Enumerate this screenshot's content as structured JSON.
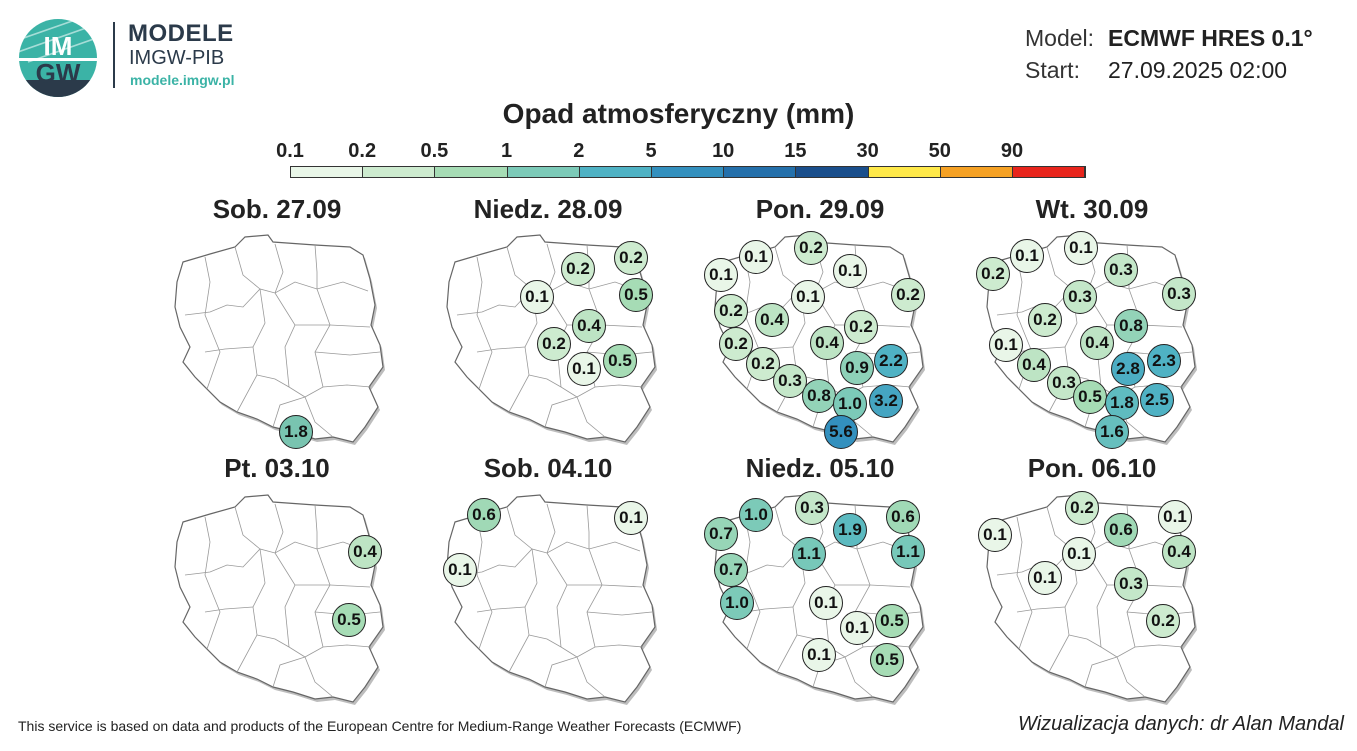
{
  "brand": {
    "title": "MODELE",
    "subtitle": "IMGW-PIB",
    "url": "modele.imgw.pl",
    "logo_text_top": "IM",
    "logo_text_bottom": "GW"
  },
  "meta": {
    "model_label": "Model:",
    "model_value": "ECMWF HRES 0.1°",
    "start_label": "Start:",
    "start_value": "27.09.2025 02:00"
  },
  "legend": {
    "title": "Opad atmosferyczny (mm)",
    "ticks": [
      "0.1",
      "0.2",
      "0.5",
      "1",
      "2",
      "5",
      "10",
      "15",
      "30",
      "50",
      "90"
    ],
    "colors": [
      "#e9f6e8",
      "#cdebcf",
      "#a6dcb5",
      "#7ccab8",
      "#4fb2c4",
      "#3390be",
      "#2470ab",
      "#1a4f8c",
      "#ffe94a",
      "#f5a124",
      "#e8251c"
    ]
  },
  "days": [
    {
      "title": "Sob. 27.09",
      "values": [
        {
          "v": "1.8",
          "c": "#79c4b0"
        }
      ]
    },
    {
      "title": "Niedz. 28.09",
      "values": [
        {
          "v": "0.2",
          "c": "#cdebcf"
        },
        {
          "v": "0.2",
          "c": "#cdebcf"
        },
        {
          "v": "0.1",
          "c": "#e9f6e8"
        },
        {
          "v": "0.5",
          "c": "#a6dcb5"
        },
        {
          "v": "0.4",
          "c": "#bde4c4"
        },
        {
          "v": "0.2",
          "c": "#cdebcf"
        },
        {
          "v": "0.1",
          "c": "#e9f6e8"
        },
        {
          "v": "0.5",
          "c": "#a6dcb5"
        }
      ]
    },
    {
      "title": "Pon. 29.09",
      "values": [
        {
          "v": "0.2",
          "c": "#cdebcf"
        },
        {
          "v": "0.1",
          "c": "#e9f6e8"
        },
        {
          "v": "0.1",
          "c": "#e9f6e8"
        },
        {
          "v": "0.1",
          "c": "#e9f6e8"
        },
        {
          "v": "0.1",
          "c": "#e9f6e8"
        },
        {
          "v": "0.2",
          "c": "#cdebcf"
        },
        {
          "v": "0.2",
          "c": "#cdebcf"
        },
        {
          "v": "0.4",
          "c": "#bde4c4"
        },
        {
          "v": "0.2",
          "c": "#cdebcf"
        },
        {
          "v": "0.4",
          "c": "#bde4c4"
        },
        {
          "v": "0.2",
          "c": "#cdebcf"
        },
        {
          "v": "0.9",
          "c": "#8ed1b8"
        },
        {
          "v": "2.2",
          "c": "#4fb2c4"
        },
        {
          "v": "0.2",
          "c": "#cdebcf"
        },
        {
          "v": "0.3",
          "c": "#c4e7c9"
        },
        {
          "v": "0.8",
          "c": "#93d3b8"
        },
        {
          "v": "1.0",
          "c": "#7ccab8"
        },
        {
          "v": "3.2",
          "c": "#45a5c2"
        },
        {
          "v": "5.6",
          "c": "#3390be"
        }
      ]
    },
    {
      "title": "Wt. 30.09",
      "values": [
        {
          "v": "0.1",
          "c": "#e9f6e8"
        },
        {
          "v": "0.1",
          "c": "#e9f6e8"
        },
        {
          "v": "0.2",
          "c": "#cdebcf"
        },
        {
          "v": "0.3",
          "c": "#c4e7c9"
        },
        {
          "v": "0.3",
          "c": "#c4e7c9"
        },
        {
          "v": "0.3",
          "c": "#c4e7c9"
        },
        {
          "v": "0.2",
          "c": "#cdebcf"
        },
        {
          "v": "0.8",
          "c": "#93d3b8"
        },
        {
          "v": "0.1",
          "c": "#e9f6e8"
        },
        {
          "v": "0.4",
          "c": "#bde4c4"
        },
        {
          "v": "0.4",
          "c": "#bde4c4"
        },
        {
          "v": "2.3",
          "c": "#4fb2c4"
        },
        {
          "v": "2.8",
          "c": "#4cadc3"
        },
        {
          "v": "0.3",
          "c": "#c4e7c9"
        },
        {
          "v": "0.5",
          "c": "#a6dcb5"
        },
        {
          "v": "1.8",
          "c": "#5fbcc0"
        },
        {
          "v": "2.5",
          "c": "#4fb2c4"
        },
        {
          "v": "1.6",
          "c": "#66bfbe"
        }
      ]
    },
    {
      "title": "Pt. 03.10",
      "values": [
        {
          "v": "0.4",
          "c": "#bde4c4"
        },
        {
          "v": "0.5",
          "c": "#a6dcb5"
        }
      ]
    },
    {
      "title": "Sob. 04.10",
      "values": [
        {
          "v": "0.6",
          "c": "#a0d9b6"
        },
        {
          "v": "0.1",
          "c": "#e9f6e8"
        },
        {
          "v": "0.1",
          "c": "#e9f6e8"
        }
      ]
    },
    {
      "title": "Niedz. 05.10",
      "values": [
        {
          "v": "1.0",
          "c": "#7ccab8"
        },
        {
          "v": "0.3",
          "c": "#c4e7c9"
        },
        {
          "v": "0.7",
          "c": "#97d5b7"
        },
        {
          "v": "1.9",
          "c": "#5cbac0"
        },
        {
          "v": "0.6",
          "c": "#a0d9b6"
        },
        {
          "v": "1.1",
          "c": "#77c8b9"
        },
        {
          "v": "1.1",
          "c": "#77c8b9"
        },
        {
          "v": "0.7",
          "c": "#97d5b7"
        },
        {
          "v": "1.0",
          "c": "#7ccab8"
        },
        {
          "v": "0.1",
          "c": "#e9f6e8"
        },
        {
          "v": "0.1",
          "c": "#e9f6e8"
        },
        {
          "v": "0.5",
          "c": "#a6dcb5"
        },
        {
          "v": "0.1",
          "c": "#e9f6e8"
        },
        {
          "v": "0.5",
          "c": "#a6dcb5"
        }
      ]
    },
    {
      "title": "Pon. 06.10",
      "values": [
        {
          "v": "0.2",
          "c": "#cdebcf"
        },
        {
          "v": "0.1",
          "c": "#e9f6e8"
        },
        {
          "v": "0.6",
          "c": "#a0d9b6"
        },
        {
          "v": "0.1",
          "c": "#e9f6e8"
        },
        {
          "v": "0.1",
          "c": "#e9f6e8"
        },
        {
          "v": "0.4",
          "c": "#bde4c4"
        },
        {
          "v": "0.1",
          "c": "#e9f6e8"
        },
        {
          "v": "0.3",
          "c": "#c4e7c9"
        },
        {
          "v": "0.2",
          "c": "#cdebcf"
        }
      ]
    }
  ],
  "footer": {
    "attribution": "This service is based on data and products of the European Centre for Medium-Range Weather Forecasts (ECMWF)",
    "credit": "Wizualizacja danych: dr Alan Mandal"
  }
}
